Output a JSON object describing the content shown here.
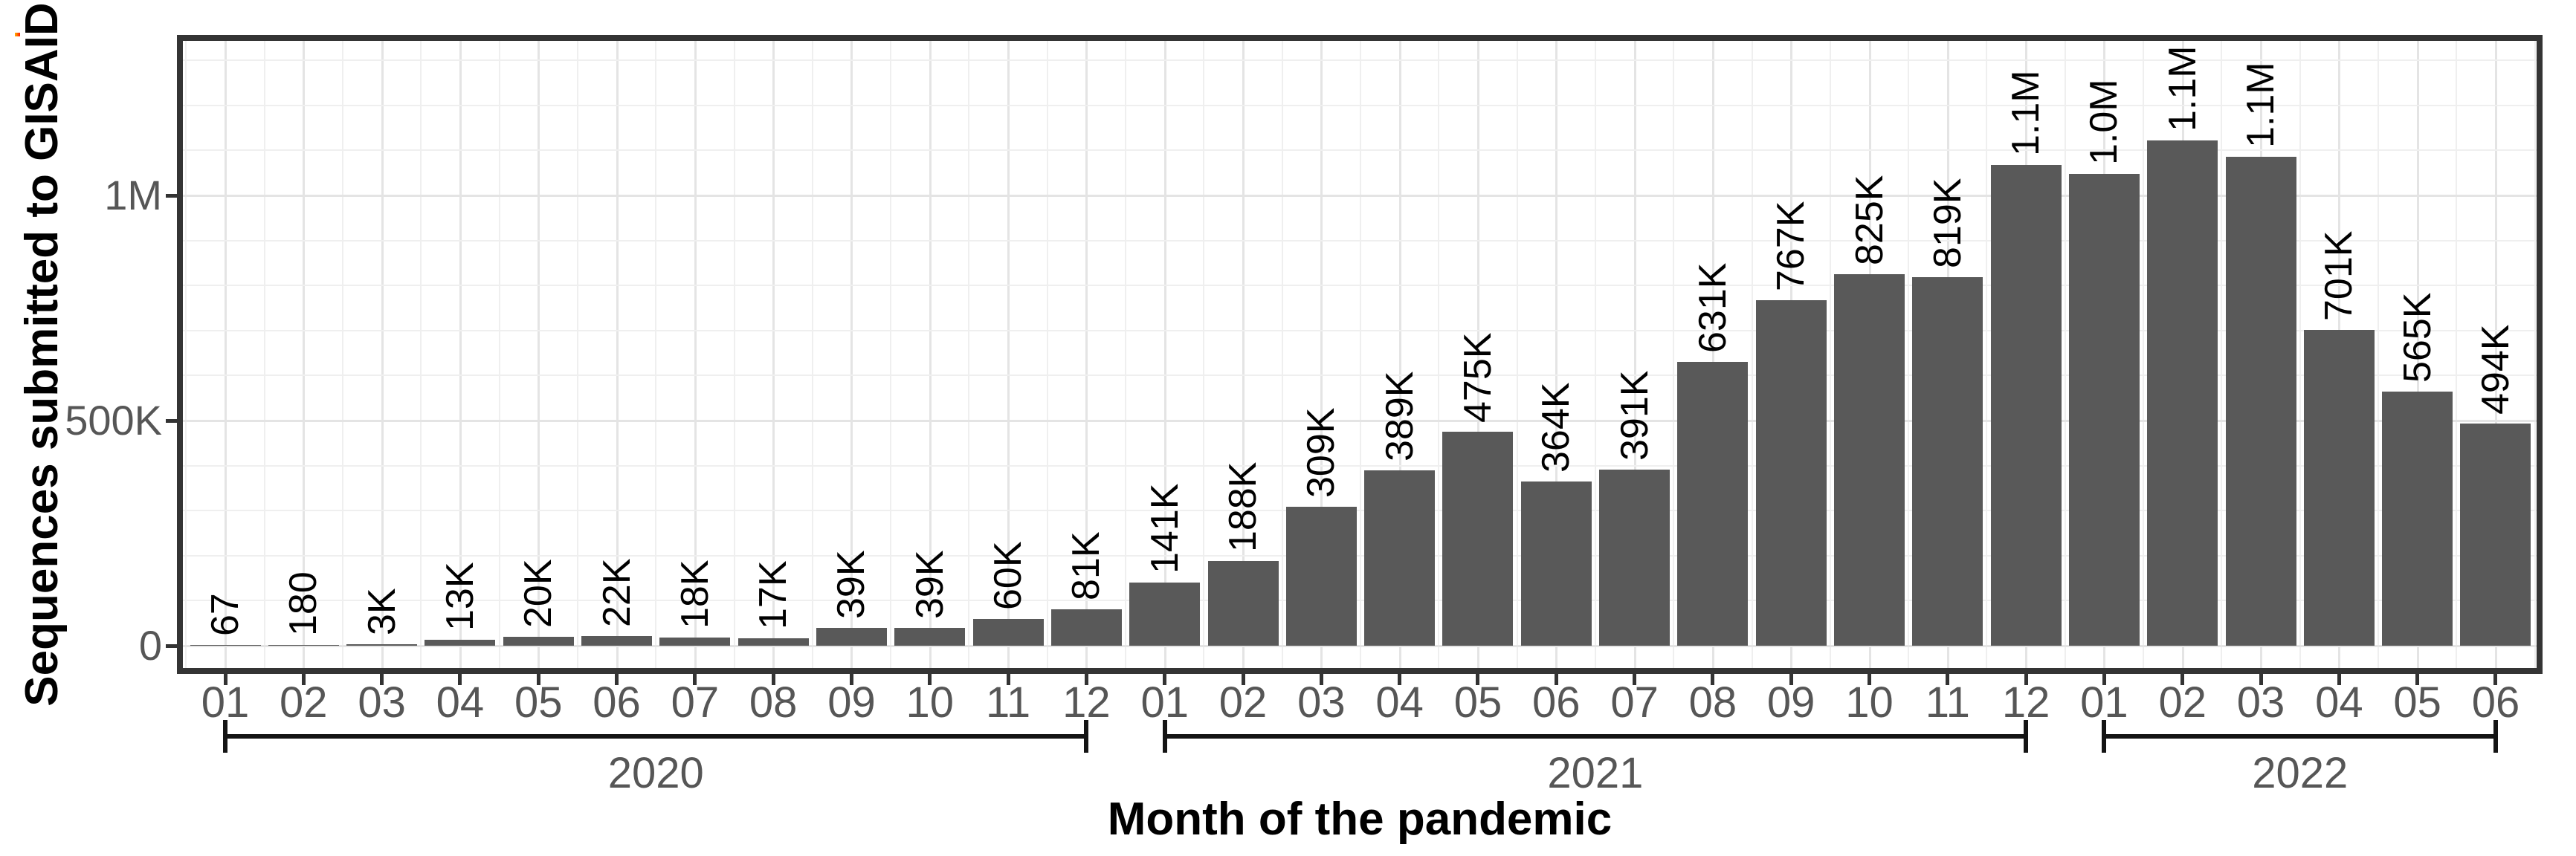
{
  "colors": {
    "bar": "#595959",
    "panel_border": "#343434",
    "grid_major": "#e4e4e4",
    "grid_minor": "#efefef",
    "tick": "#333333",
    "axis_text": "#565656",
    "value_text": "#000000",
    "title_text": "#000000",
    "bracket": "#141414"
  },
  "chart_data": {
    "type": "bar",
    "title": "",
    "ylabel": "Sequences submitted to GISAID",
    "xlabel": "Month of the pandemic",
    "legend": "none",
    "grid": "on",
    "ylim": [
      0,
      1343000
    ],
    "y_ticks": [
      {
        "label": "0",
        "value": 0
      },
      {
        "label": "500K",
        "value": 500000
      },
      {
        "label": "1M",
        "value": 1000000
      }
    ],
    "groups": [
      {
        "year": "2020",
        "months": [
          "01",
          "02",
          "03",
          "04",
          "05",
          "06",
          "07",
          "08",
          "09",
          "10",
          "11",
          "12"
        ],
        "values": [
          67,
          180,
          3000,
          13000,
          20000,
          22000,
          18000,
          17000,
          39000,
          39000,
          60000,
          81000
        ],
        "labels": [
          "67",
          "180",
          "3K",
          "13K",
          "20K",
          "22K",
          "18K",
          "17K",
          "39K",
          "39K",
          "60K",
          "81K"
        ]
      },
      {
        "year": "2021",
        "months": [
          "01",
          "02",
          "03",
          "04",
          "05",
          "06",
          "07",
          "08",
          "09",
          "10",
          "11",
          "12"
        ],
        "values": [
          141000,
          188000,
          309000,
          389000,
          475000,
          364000,
          391000,
          631000,
          767000,
          825000,
          819000,
          1068000
        ],
        "labels": [
          "141K",
          "188K",
          "309K",
          "389K",
          "475K",
          "364K",
          "391K",
          "631K",
          "767K",
          "825K",
          "819K",
          "1.1M"
        ]
      },
      {
        "year": "2022",
        "months": [
          "01",
          "02",
          "03",
          "04",
          "05",
          "06"
        ],
        "values": [
          1048000,
          1122000,
          1086000,
          701000,
          565000,
          494000
        ],
        "labels": [
          "1.0M",
          "1.1M",
          "1.1M",
          "701K",
          "565K",
          "494K"
        ]
      }
    ]
  }
}
